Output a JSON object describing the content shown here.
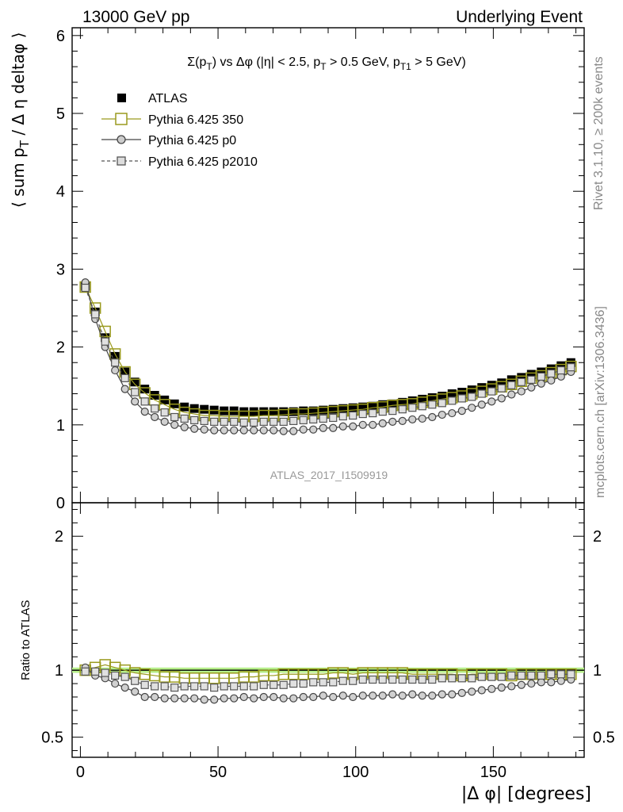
{
  "header": {
    "left": "13000 GeV pp",
    "right": "Underlying Event"
  },
  "plot_title": "Σ(p_T) vs Δφ (|η| < 2.5, p_T > 0.5 GeV, p_T1 > 5 GeV)",
  "side_labels": {
    "rivet": "Rivet 3.1.10, ≥ 200k events",
    "mcplots": "mcplots.cern.ch [arXiv:1306.3436]"
  },
  "watermark": "ATLAS_2017_I1509919",
  "colors": {
    "data": "#000000",
    "p350": "#9a9a1e",
    "p0": "#444444",
    "p2010": "#555555",
    "band": "#b8f08c"
  },
  "chart_data": [
    {
      "type": "scatter",
      "panel": "main",
      "ylabel": "⟨ sum p_T / Δ η deltaφ ⟩",
      "xlim": [
        -3,
        183
      ],
      "ylim": [
        0,
        6.1
      ],
      "yticks": [
        0,
        1,
        2,
        3,
        4,
        5,
        6
      ],
      "legend": [
        "ATLAS",
        "Pythia 6.425 350",
        "Pythia 6.425 p0",
        "Pythia 6.425 p2010"
      ],
      "x": [
        1.8,
        5.4,
        9,
        12.6,
        16.2,
        19.8,
        23.4,
        27,
        30.6,
        34.2,
        37.8,
        41.4,
        45,
        48.6,
        52.2,
        55.8,
        59.4,
        63,
        66.6,
        70.2,
        73.8,
        77.4,
        81,
        84.6,
        88.2,
        91.8,
        95.4,
        99,
        102.6,
        106.2,
        109.8,
        113.4,
        117,
        120.6,
        124.2,
        127.8,
        131.4,
        135,
        138.6,
        142.2,
        145.8,
        149.4,
        153,
        156.6,
        160.2,
        163.8,
        167.4,
        171,
        174.6,
        178.2
      ],
      "series": [
        {
          "name": "ATLAS",
          "values": [
            2.78,
            2.45,
            2.12,
            1.88,
            1.68,
            1.55,
            1.46,
            1.38,
            1.32,
            1.27,
            1.23,
            1.21,
            1.2,
            1.19,
            1.18,
            1.18,
            1.17,
            1.17,
            1.17,
            1.17,
            1.17,
            1.17,
            1.18,
            1.18,
            1.19,
            1.2,
            1.21,
            1.22,
            1.23,
            1.24,
            1.26,
            1.27,
            1.29,
            1.31,
            1.33,
            1.35,
            1.37,
            1.4,
            1.42,
            1.45,
            1.48,
            1.51,
            1.54,
            1.58,
            1.61,
            1.65,
            1.68,
            1.72,
            1.76,
            1.8
          ]
        },
        {
          "name": "Pythia 6.425 350",
          "values": [
            2.77,
            2.5,
            2.2,
            1.91,
            1.68,
            1.52,
            1.41,
            1.32,
            1.26,
            1.2,
            1.16,
            1.14,
            1.12,
            1.12,
            1.11,
            1.11,
            1.11,
            1.11,
            1.12,
            1.12,
            1.13,
            1.14,
            1.14,
            1.15,
            1.16,
            1.17,
            1.18,
            1.19,
            1.2,
            1.22,
            1.23,
            1.25,
            1.26,
            1.27,
            1.29,
            1.31,
            1.33,
            1.35,
            1.37,
            1.4,
            1.43,
            1.46,
            1.49,
            1.52,
            1.56,
            1.6,
            1.63,
            1.67,
            1.71,
            1.75
          ]
        },
        {
          "name": "Pythia 6.425 p0",
          "values": [
            2.83,
            2.36,
            2.0,
            1.7,
            1.46,
            1.3,
            1.17,
            1.1,
            1.04,
            1.0,
            0.97,
            0.95,
            0.94,
            0.93,
            0.93,
            0.93,
            0.93,
            0.93,
            0.93,
            0.93,
            0.92,
            0.92,
            0.94,
            0.94,
            0.96,
            0.96,
            0.98,
            0.98,
            1.0,
            1.0,
            1.02,
            1.04,
            1.05,
            1.07,
            1.08,
            1.1,
            1.13,
            1.15,
            1.18,
            1.22,
            1.26,
            1.3,
            1.34,
            1.39,
            1.43,
            1.48,
            1.53,
            1.57,
            1.62,
            1.68
          ]
        },
        {
          "name": "Pythia 6.425 p2010",
          "values": [
            2.76,
            2.42,
            2.07,
            1.8,
            1.6,
            1.42,
            1.3,
            1.21,
            1.16,
            1.1,
            1.08,
            1.06,
            1.05,
            1.04,
            1.04,
            1.04,
            1.03,
            1.03,
            1.04,
            1.04,
            1.04,
            1.05,
            1.06,
            1.07,
            1.08,
            1.09,
            1.11,
            1.12,
            1.14,
            1.15,
            1.17,
            1.18,
            1.2,
            1.22,
            1.24,
            1.26,
            1.28,
            1.31,
            1.34,
            1.36,
            1.4,
            1.43,
            1.47,
            1.51,
            1.55,
            1.58,
            1.62,
            1.66,
            1.7,
            1.74
          ]
        }
      ]
    },
    {
      "type": "line",
      "panel": "ratio",
      "xlabel": "|Δ φ| [degrees]",
      "ylabel": "Ratio to ATLAS",
      "xlim": [
        -3,
        183
      ],
      "ylim": [
        0.35,
        2.25
      ],
      "yticks": [
        0.5,
        1,
        2
      ],
      "xticks": [
        0,
        50,
        100,
        150
      ],
      "x": [
        1.8,
        5.4,
        9,
        12.6,
        16.2,
        19.8,
        23.4,
        27,
        30.6,
        34.2,
        37.8,
        41.4,
        45,
        48.6,
        52.2,
        55.8,
        59.4,
        63,
        66.6,
        70.2,
        73.8,
        77.4,
        81,
        84.6,
        88.2,
        91.8,
        95.4,
        99,
        102.6,
        106.2,
        109.8,
        113.4,
        117,
        120.6,
        124.2,
        127.8,
        131.4,
        135,
        138.6,
        142.2,
        145.8,
        149.4,
        153,
        156.6,
        160.2,
        163.8,
        167.4,
        171,
        174.6,
        178.2
      ],
      "series": [
        {
          "name": "Pythia 6.425 350",
          "values": [
            1.0,
            1.02,
            1.04,
            1.02,
            1.0,
            0.98,
            0.97,
            0.96,
            0.95,
            0.95,
            0.94,
            0.94,
            0.94,
            0.94,
            0.94,
            0.94,
            0.95,
            0.95,
            0.96,
            0.96,
            0.97,
            0.97,
            0.97,
            0.97,
            0.97,
            0.98,
            0.98,
            0.97,
            0.98,
            0.98,
            0.98,
            0.98,
            0.98,
            0.97,
            0.97,
            0.97,
            0.97,
            0.97,
            0.96,
            0.97,
            0.97,
            0.97,
            0.97,
            0.96,
            0.97,
            0.97,
            0.97,
            0.97,
            0.97,
            0.97
          ]
        },
        {
          "name": "Pythia 6.425 p0",
          "values": [
            1.02,
            0.96,
            0.94,
            0.9,
            0.87,
            0.84,
            0.8,
            0.8,
            0.79,
            0.79,
            0.79,
            0.79,
            0.78,
            0.78,
            0.79,
            0.79,
            0.8,
            0.79,
            0.8,
            0.8,
            0.79,
            0.79,
            0.8,
            0.8,
            0.81,
            0.8,
            0.81,
            0.8,
            0.81,
            0.81,
            0.81,
            0.82,
            0.81,
            0.82,
            0.81,
            0.81,
            0.82,
            0.82,
            0.83,
            0.84,
            0.85,
            0.86,
            0.87,
            0.88,
            0.89,
            0.9,
            0.91,
            0.91,
            0.92,
            0.93
          ]
        },
        {
          "name": "Pythia 6.425 p2010",
          "values": [
            0.99,
            0.99,
            0.98,
            0.96,
            0.95,
            0.92,
            0.89,
            0.88,
            0.88,
            0.87,
            0.88,
            0.88,
            0.88,
            0.87,
            0.88,
            0.88,
            0.88,
            0.88,
            0.89,
            0.89,
            0.89,
            0.9,
            0.9,
            0.91,
            0.91,
            0.91,
            0.92,
            0.92,
            0.93,
            0.93,
            0.93,
            0.93,
            0.93,
            0.93,
            0.93,
            0.93,
            0.94,
            0.94,
            0.94,
            0.94,
            0.95,
            0.95,
            0.95,
            0.96,
            0.96,
            0.96,
            0.96,
            0.97,
            0.97,
            0.97
          ]
        }
      ]
    }
  ]
}
